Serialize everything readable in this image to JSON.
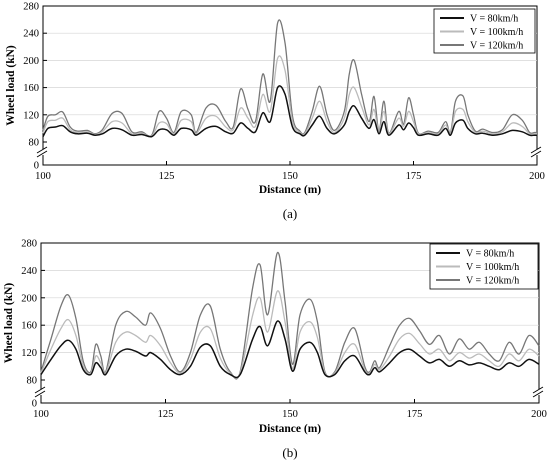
{
  "chart_data": [
    {
      "type": "line",
      "panel_label": "(a)",
      "xlabel": "Distance (m)",
      "ylabel": "Wheel load (kN)",
      "xlim": [
        100,
        200
      ],
      "ylim": [
        0,
        280
      ],
      "axis_break": [
        0,
        80
      ],
      "xticks": [
        "100",
        "125",
        "150",
        "175",
        "200"
      ],
      "yticks": [
        "0",
        "80",
        "120",
        "160",
        "200",
        "240",
        "280"
      ],
      "legend_position": "top-right",
      "series": [
        {
          "name": "V = 80km/h",
          "color": "#111111",
          "x": [
            100,
            101,
            102.5,
            104,
            105.5,
            107,
            109,
            110.5,
            112,
            114,
            116,
            118,
            120,
            122,
            123.5,
            125,
            126.5,
            128,
            130,
            131,
            133,
            135,
            137,
            138.5,
            140,
            141.5,
            143,
            144.5,
            146,
            147.5,
            149,
            150.5,
            152,
            153,
            154.5,
            156,
            157.5,
            159,
            161,
            162,
            163,
            164.5,
            166,
            167,
            168,
            169,
            170,
            172,
            173,
            174,
            175,
            176,
            178,
            180,
            181.5,
            182.5,
            183.5,
            185,
            186,
            187.5,
            189,
            191,
            193,
            195,
            197,
            198.5,
            199.5,
            200
          ],
          "y": [
            88,
            100,
            102,
            104,
            95,
            92,
            93,
            90,
            92,
            100,
            98,
            90,
            91,
            88,
            98,
            98,
            90,
            100,
            98,
            90,
            100,
            103,
            95,
            93,
            108,
            100,
            95,
            123,
            110,
            160,
            150,
            102,
            92,
            90,
            105,
            118,
            100,
            92,
            105,
            125,
            133,
            115,
            100,
            113,
            92,
            110,
            90,
            105,
            98,
            108,
            101,
            90,
            92,
            90,
            100,
            90,
            108,
            112,
            100,
            92,
            93,
            90,
            92,
            97,
            95,
            90,
            90,
            90
          ]
        },
        {
          "name": "V = 100km/h",
          "color": "#bbbbbb",
          "x": [
            100,
            101,
            102.5,
            104,
            105.5,
            107,
            109,
            110.5,
            112,
            114,
            116,
            118,
            120,
            122,
            123.5,
            125,
            126.5,
            128,
            130,
            131,
            133,
            135,
            137,
            138.5,
            140,
            141.5,
            143,
            144.5,
            146,
            147.5,
            149,
            150.5,
            152,
            153,
            154.5,
            156,
            157.5,
            159,
            161,
            162,
            163,
            164.5,
            166,
            167,
            168,
            169,
            170,
            172,
            173,
            174,
            175,
            176,
            178,
            180,
            181.5,
            182.5,
            183.5,
            185,
            186,
            187.5,
            189,
            191,
            193,
            195,
            197,
            198.5,
            199.5,
            200
          ],
          "y": [
            93,
            110,
            112,
            115,
            98,
            94,
            95,
            91,
            95,
            110,
            108,
            92,
            93,
            89,
            108,
            107,
            92,
            112,
            110,
            92,
            115,
            118,
            102,
            98,
            130,
            115,
            103,
            150,
            125,
            203,
            185,
            110,
            94,
            92,
            115,
            140,
            110,
            94,
            115,
            150,
            160,
            132,
            105,
            128,
            94,
            125,
            92,
            115,
            103,
            125,
            110,
            92,
            94,
            92,
            105,
            92,
            125,
            128,
            110,
            94,
            96,
            92,
            95,
            108,
            103,
            92,
            92,
            92
          ]
        },
        {
          "name": "V = 120km/h",
          "color": "#777777",
          "x": [
            100,
            101,
            102.5,
            104,
            105.5,
            107,
            109,
            110.5,
            112,
            114,
            116,
            118,
            120,
            122,
            123.5,
            125,
            126.5,
            128,
            130,
            131,
            133,
            135,
            137,
            138.5,
            140,
            141.5,
            143,
            144.5,
            146,
            147.5,
            149,
            150.5,
            152,
            153,
            154.5,
            156,
            157.5,
            159,
            161,
            162,
            163,
            164.5,
            166,
            167,
            168,
            169,
            170,
            172,
            173,
            174,
            175,
            176,
            178,
            180,
            181.5,
            182.5,
            183.5,
            185,
            186,
            187.5,
            189,
            191,
            193,
            195,
            197,
            198.5,
            199.5,
            200
          ],
          "y": [
            97,
            118,
            120,
            124,
            102,
            96,
            97,
            92,
            98,
            122,
            122,
            95,
            95,
            90,
            125,
            115,
            94,
            125,
            120,
            94,
            130,
            134,
            110,
            102,
            158,
            128,
            110,
            180,
            140,
            255,
            225,
            118,
            96,
            94,
            125,
            162,
            120,
            97,
            125,
            180,
            200,
            150,
            110,
            147,
            96,
            140,
            93,
            125,
            106,
            145,
            120,
            93,
            96,
            94,
            110,
            94,
            140,
            148,
            120,
            96,
            99,
            94,
            98,
            120,
            112,
            94,
            94,
            94
          ]
        }
      ]
    },
    {
      "type": "line",
      "panel_label": "(b)",
      "xlabel": "Distance (m)",
      "ylabel": "Wheel load (kN)",
      "xlim": [
        100,
        200
      ],
      "ylim": [
        0,
        280
      ],
      "axis_break": [
        0,
        80
      ],
      "xticks": [
        "100",
        "125",
        "150",
        "175",
        "200"
      ],
      "yticks": [
        "0",
        "80",
        "120",
        "160",
        "200",
        "240",
        "280"
      ],
      "legend_position": "top-right",
      "series": [
        {
          "name": "V = 80km/h",
          "color": "#111111",
          "x": [
            100,
            102,
            104,
            105.5,
            107,
            108.5,
            110,
            111,
            112,
            113,
            115,
            117,
            119,
            121,
            122,
            124,
            126,
            128,
            130,
            132,
            134,
            136,
            138,
            140,
            142.5,
            144,
            145.5,
            147.5,
            149,
            150.5,
            152,
            154,
            155.5,
            157,
            159,
            161,
            163,
            165,
            166,
            167,
            168,
            170,
            172,
            174,
            176,
            178,
            180,
            182,
            184,
            186,
            188,
            190,
            192,
            194,
            196,
            198,
            200
          ],
          "y": [
            88,
            110,
            130,
            138,
            125,
            95,
            88,
            105,
            98,
            88,
            115,
            125,
            122,
            115,
            120,
            110,
            95,
            88,
            100,
            128,
            130,
            100,
            88,
            88,
            140,
            158,
            130,
            166,
            140,
            93,
            125,
            135,
            120,
            88,
            88,
            108,
            115,
            92,
            88,
            98,
            92,
            105,
            120,
            125,
            115,
            105,
            110,
            100,
            108,
            102,
            105,
            100,
            95,
            105,
            100,
            110,
            103
          ]
        },
        {
          "name": "V = 100km/h",
          "color": "#bbbbbb",
          "x": [
            100,
            102,
            104,
            105.5,
            107,
            108.5,
            110,
            111,
            112,
            113,
            115,
            117,
            119,
            121,
            122,
            124,
            126,
            128,
            130,
            132,
            134,
            136,
            138,
            140,
            142.5,
            144,
            145.5,
            147.5,
            149,
            150.5,
            152,
            154,
            155.5,
            157,
            159,
            161,
            163,
            165,
            166,
            167,
            168,
            170,
            172,
            174,
            176,
            178,
            180,
            182,
            184,
            186,
            188,
            190,
            192,
            194,
            196,
            198,
            200
          ],
          "y": [
            90,
            125,
            155,
            168,
            145,
            100,
            90,
            115,
            105,
            90,
            135,
            150,
            145,
            135,
            145,
            130,
            105,
            90,
            110,
            150,
            155,
            112,
            90,
            90,
            175,
            200,
            150,
            210,
            165,
            97,
            150,
            165,
            142,
            90,
            90,
            120,
            132,
            95,
            90,
            103,
            95,
            115,
            140,
            148,
            133,
            118,
            125,
            108,
            120,
            112,
            118,
            108,
            100,
            118,
            108,
            125,
            115
          ]
        },
        {
          "name": "V = 120km/h",
          "color": "#777777",
          "x": [
            100,
            102,
            104,
            105.5,
            107,
            108.5,
            110,
            111,
            112,
            113,
            115,
            117,
            119,
            121,
            122,
            124,
            126,
            128,
            130,
            132,
            134,
            136,
            138,
            140,
            142.5,
            144,
            145.5,
            147.5,
            149,
            150.5,
            152,
            154,
            155.5,
            157,
            159,
            161,
            163,
            165,
            166,
            167,
            168,
            170,
            172,
            174,
            176,
            178,
            180,
            182,
            184,
            186,
            188,
            190,
            192,
            194,
            196,
            198,
            200
          ],
          "y": [
            92,
            140,
            188,
            204,
            170,
            107,
            92,
            132,
            115,
            92,
            160,
            180,
            172,
            160,
            178,
            155,
            115,
            92,
            120,
            175,
            188,
            125,
            92,
            92,
            215,
            248,
            175,
            266,
            195,
            103,
            175,
            198,
            165,
            92,
            92,
            135,
            155,
            100,
            92,
            108,
            98,
            130,
            160,
            170,
            152,
            132,
            145,
            118,
            140,
            125,
            135,
            118,
            108,
            135,
            118,
            145,
            130
          ]
        }
      ]
    }
  ]
}
